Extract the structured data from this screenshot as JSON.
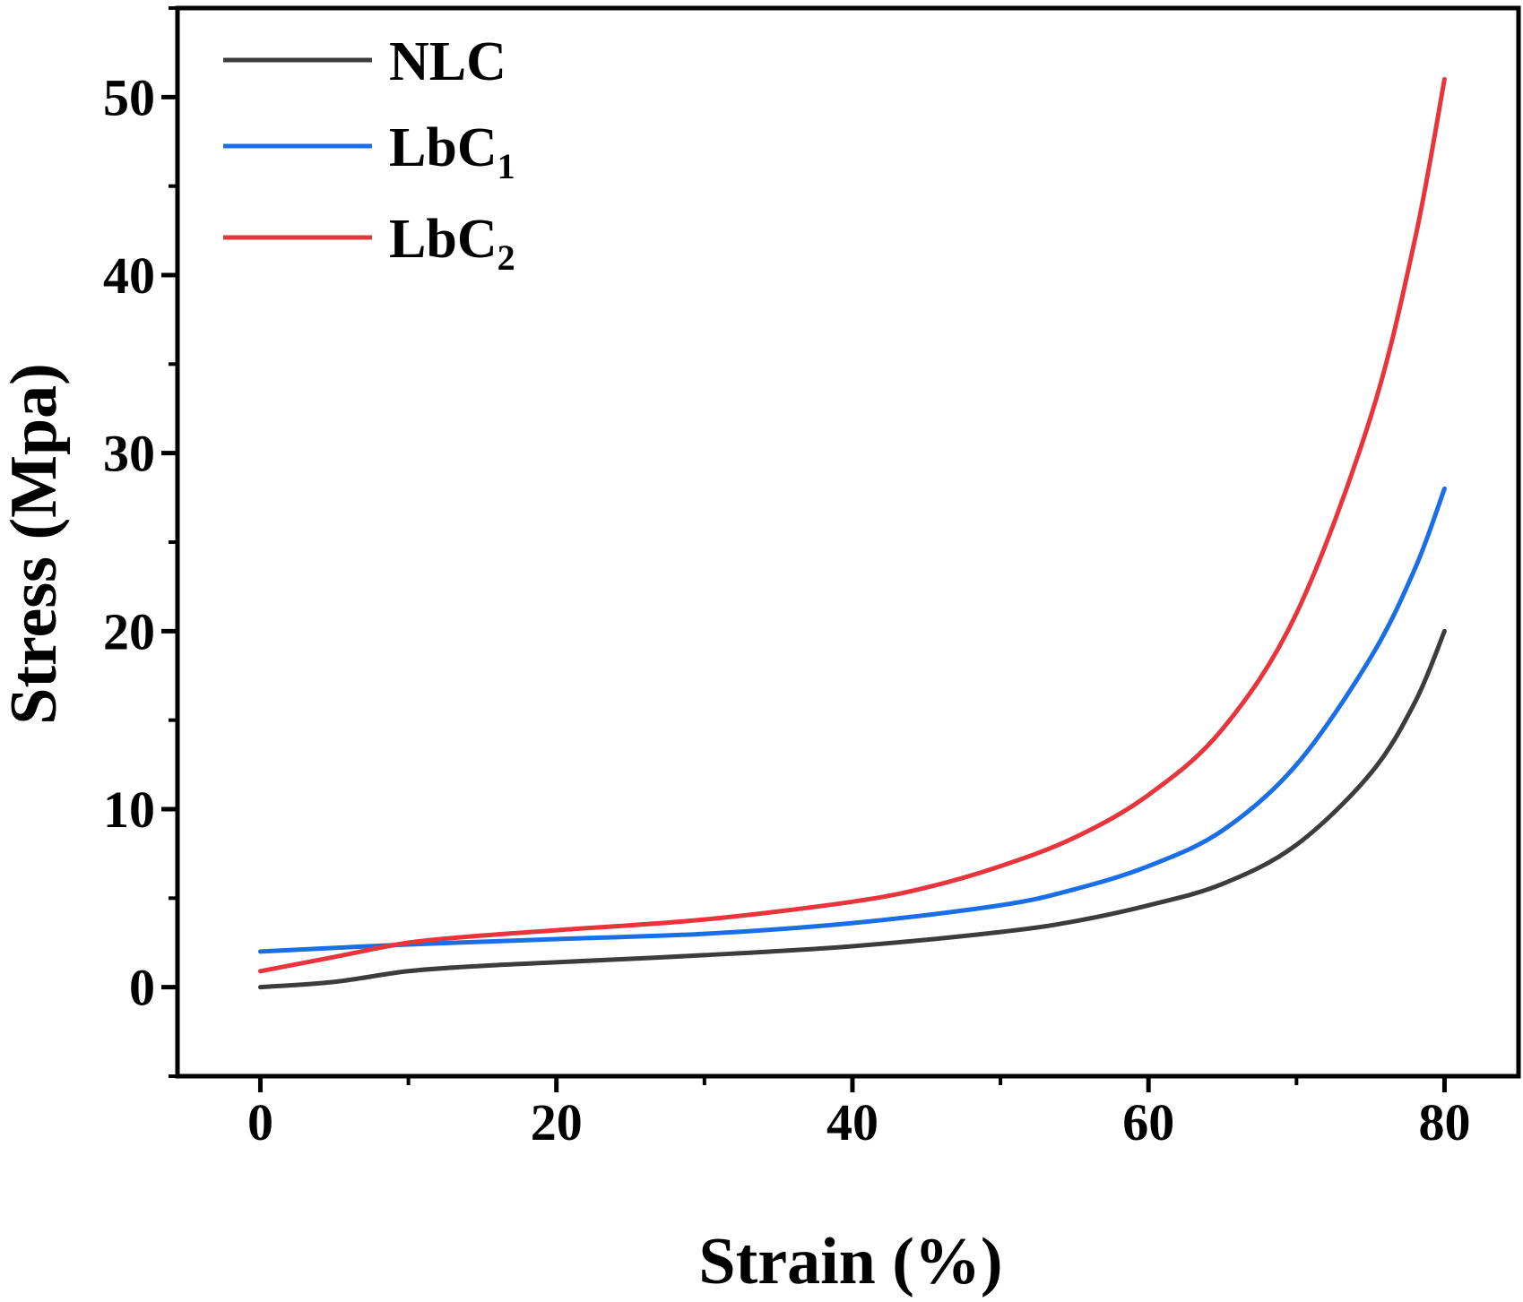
{
  "chart_data": {
    "type": "line",
    "xlabel": "Strain (%)",
    "ylabel": "Stress (Mpa)",
    "xlim": [
      -5.6,
      85
    ],
    "ylim": [
      -5,
      55
    ],
    "xticks": [
      0,
      20,
      40,
      60,
      80
    ],
    "yticks": [
      0,
      10,
      20,
      30,
      40,
      50
    ],
    "grid": false,
    "legend_position": "top-left",
    "series": [
      {
        "name": "NLC",
        "label": "NLC",
        "subscript": "",
        "color": "#3c3c3c",
        "x": [
          0,
          5,
          10,
          15,
          20,
          30,
          40,
          50,
          55,
          60,
          65,
          70,
          75,
          78,
          80
        ],
        "y": [
          0,
          0.3,
          0.9,
          1.2,
          1.4,
          1.8,
          2.3,
          3.1,
          3.7,
          4.6,
          5.8,
          8.0,
          12.0,
          16.0,
          20.0
        ]
      },
      {
        "name": "LbC1",
        "label": "LbC",
        "subscript": "1",
        "color": "#1a6ee8",
        "x": [
          0,
          10,
          20,
          30,
          40,
          50,
          55,
          60,
          65,
          70,
          75,
          78,
          80
        ],
        "y": [
          2.0,
          2.4,
          2.7,
          3.0,
          3.6,
          4.6,
          5.5,
          6.8,
          8.8,
          12.5,
          18.5,
          23.5,
          28.0
        ]
      },
      {
        "name": "LbC2",
        "label": "LbC",
        "subscript": "2",
        "color": "#e8353b",
        "x": [
          0,
          5,
          10,
          15,
          20,
          30,
          40,
          45,
          50,
          55,
          60,
          65,
          70,
          75,
          78,
          80
        ],
        "y": [
          0.9,
          1.7,
          2.5,
          2.9,
          3.2,
          3.8,
          4.8,
          5.6,
          6.8,
          8.4,
          10.8,
          14.5,
          21.0,
          32.0,
          42.0,
          51.0
        ]
      }
    ]
  }
}
